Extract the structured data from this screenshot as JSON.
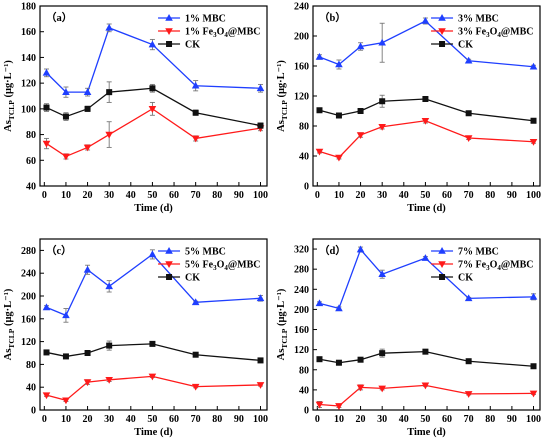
{
  "colors": {
    "mbc": "#1f3fff",
    "fe": "#ff1a1a",
    "ck": "#111111"
  },
  "chart_data": [
    {
      "type": "line",
      "panel_label": "（a）",
      "x": [
        1,
        10,
        20,
        30,
        50,
        70,
        100
      ],
      "xlabel": "Time (d)",
      "ylabel_main": "As",
      "ylabel_sub": "TCLP",
      "ylabel_unit": " (μg·L⁻¹)",
      "xlim": [
        -2,
        103
      ],
      "ylim": [
        40,
        180
      ],
      "xticks": [
        0,
        10,
        20,
        30,
        40,
        50,
        60,
        70,
        80,
        90,
        100
      ],
      "yticks": [
        40,
        60,
        80,
        100,
        120,
        140,
        160,
        180
      ],
      "legend_position": "top-right",
      "series": [
        {
          "name": "1% MBC",
          "name_prefix": "1% ",
          "name_main": "MBC",
          "marker": "triangle-up",
          "color_key": "mbc",
          "values": [
            128,
            113,
            113,
            163,
            150,
            118,
            116
          ],
          "errors": [
            3,
            4,
            3,
            3,
            4,
            4,
            3
          ]
        },
        {
          "name": "1% Fe3O4@MBC",
          "name_prefix": "1% Fe",
          "name_sub1": "3",
          "name_mid": "O",
          "name_sub2": "4",
          "name_tail": "@MBC",
          "marker": "triangle-down",
          "color_key": "fe",
          "values": [
            73,
            63,
            70,
            80,
            100,
            77,
            85
          ],
          "errors": [
            4,
            2,
            2,
            10,
            5,
            2,
            2
          ]
        },
        {
          "name": "CK",
          "name_prefix": "",
          "name_main": "CK",
          "marker": "square",
          "color_key": "ck",
          "values": [
            101,
            94,
            100,
            113,
            116,
            97,
            87
          ],
          "errors": [
            3,
            3,
            2,
            8,
            3,
            2,
            2
          ]
        }
      ]
    },
    {
      "type": "line",
      "panel_label": "（b）",
      "x": [
        1,
        10,
        20,
        30,
        50,
        70,
        100
      ],
      "xlabel": "Time (d)",
      "ylabel_main": "As",
      "ylabel_sub": "TCLP",
      "ylabel_unit": " (μg·L⁻¹)",
      "xlim": [
        -2,
        103
      ],
      "ylim": [
        0,
        240
      ],
      "xticks": [
        0,
        10,
        20,
        30,
        40,
        50,
        60,
        70,
        80,
        90,
        100
      ],
      "yticks": [
        0,
        40,
        80,
        120,
        160,
        200,
        240
      ],
      "legend_position": "top-right",
      "series": [
        {
          "name": "3% MBC",
          "name_prefix": "3% ",
          "name_main": "MBC",
          "marker": "triangle-up",
          "color_key": "mbc",
          "values": [
            172,
            162,
            186,
            191,
            220,
            167,
            159
          ],
          "errors": [
            3,
            6,
            5,
            26,
            4,
            2,
            2
          ]
        },
        {
          "name": "3% Fe3O4@MBC",
          "name_prefix": "3% Fe",
          "name_sub1": "3",
          "name_mid": "O",
          "name_sub2": "4",
          "name_tail": "@MBC",
          "marker": "triangle-down",
          "color_key": "fe",
          "values": [
            46,
            38,
            68,
            79,
            87,
            64,
            59
          ],
          "errors": [
            2,
            2,
            3,
            3,
            3,
            2,
            2
          ]
        },
        {
          "name": "CK",
          "name_prefix": "",
          "name_main": "CK",
          "marker": "square",
          "color_key": "ck",
          "values": [
            101,
            94,
            100,
            113,
            116,
            97,
            87
          ],
          "errors": [
            3,
            3,
            2,
            8,
            3,
            2,
            2
          ]
        }
      ]
    },
    {
      "type": "line",
      "panel_label": "（c）",
      "x": [
        1,
        10,
        20,
        30,
        50,
        70,
        100
      ],
      "xlabel": "Time (d)",
      "ylabel_main": "As",
      "ylabel_sub": "TCLP",
      "ylabel_unit": " (μg·L⁻¹)",
      "xlim": [
        -2,
        103
      ],
      "ylim": [
        0,
        300
      ],
      "xticks": [
        0,
        10,
        20,
        30,
        40,
        50,
        60,
        70,
        80,
        90,
        100
      ],
      "yticks": [
        0,
        40,
        80,
        120,
        160,
        200,
        240,
        280
      ],
      "legend_position": "top-right",
      "series": [
        {
          "name": "5% MBC",
          "name_prefix": "5% ",
          "name_main": "MBC",
          "marker": "triangle-up",
          "color_key": "mbc",
          "values": [
            180,
            166,
            246,
            217,
            273,
            189,
            196
          ],
          "errors": [
            3,
            12,
            8,
            10,
            8,
            2,
            5
          ]
        },
        {
          "name": "5% Fe3O4@MBC",
          "name_prefix": "5% Fe",
          "name_sub1": "3",
          "name_mid": "O",
          "name_sub2": "4",
          "name_tail": "@MBC",
          "marker": "triangle-down",
          "color_key": "fe",
          "values": [
            26,
            17,
            49,
            53,
            59,
            41,
            44
          ],
          "errors": [
            2,
            2,
            4,
            3,
            2,
            2,
            2
          ]
        },
        {
          "name": "CK",
          "name_prefix": "",
          "name_main": "CK",
          "marker": "square",
          "color_key": "ck",
          "values": [
            101,
            94,
            100,
            113,
            116,
            97,
            87
          ],
          "errors": [
            3,
            3,
            2,
            8,
            3,
            2,
            2
          ]
        }
      ]
    },
    {
      "type": "line",
      "panel_label": "（d）",
      "x": [
        1,
        10,
        20,
        30,
        50,
        70,
        100
      ],
      "xlabel": "Time (d)",
      "ylabel_main": "As",
      "ylabel_sub": "TCLP",
      "ylabel_unit": " (μg·L⁻¹)",
      "xlim": [
        -2,
        103
      ],
      "ylim": [
        0,
        340
      ],
      "xticks": [
        0,
        10,
        20,
        30,
        40,
        50,
        60,
        70,
        80,
        90,
        100
      ],
      "yticks": [
        0,
        40,
        80,
        120,
        160,
        200,
        240,
        280,
        320
      ],
      "legend_position": "top-right",
      "series": [
        {
          "name": "7% MBC",
          "name_prefix": "7% ",
          "name_main": "MBC",
          "marker": "triangle-up",
          "color_key": "mbc",
          "values": [
            212,
            202,
            319,
            270,
            302,
            222,
            225
          ],
          "errors": [
            3,
            3,
            5,
            8,
            3,
            2,
            6
          ]
        },
        {
          "name": "7% Fe3O4@MBC",
          "name_prefix": "7% Fe",
          "name_sub1": "3",
          "name_mid": "O",
          "name_sub2": "4",
          "name_tail": "@MBC",
          "marker": "triangle-down",
          "color_key": "fe",
          "values": [
            11,
            8,
            45,
            43,
            49,
            32,
            33
          ],
          "errors": [
            6,
            3,
            5,
            3,
            2,
            2,
            2
          ]
        },
        {
          "name": "CK",
          "name_prefix": "",
          "name_main": "CK",
          "marker": "square",
          "color_key": "ck",
          "values": [
            101,
            94,
            100,
            113,
            116,
            97,
            87
          ],
          "errors": [
            3,
            3,
            2,
            8,
            3,
            2,
            2
          ]
        }
      ]
    }
  ]
}
